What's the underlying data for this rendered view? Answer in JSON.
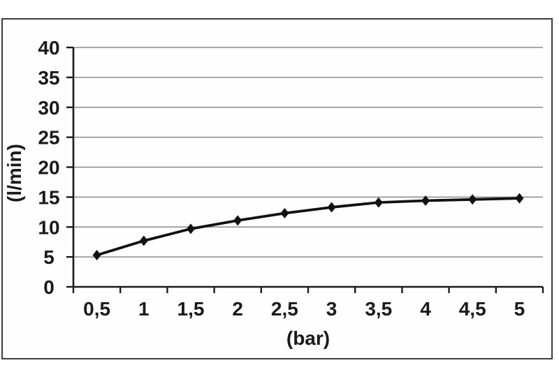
{
  "figure": {
    "frame_color": "#3c3c3c",
    "background_color": "#ffffff"
  },
  "chart_data": {
    "type": "line",
    "title": "",
    "xlabel": "(bar)",
    "ylabel": "(l/min)",
    "categories": [
      "0,5",
      "1",
      "1,5",
      "2",
      "2,5",
      "3",
      "3,5",
      "4",
      "4,5",
      "5"
    ],
    "values": [
      5.3,
      7.7,
      9.7,
      11.1,
      12.3,
      13.3,
      14.1,
      14.4,
      14.6,
      14.8
    ],
    "ylim": [
      0,
      40
    ],
    "ytick_step": 5,
    "ytick_labels": [
      "0",
      "5",
      "10",
      "15",
      "20",
      "25",
      "30",
      "35",
      "40"
    ],
    "grid": true,
    "legend": "none",
    "marker": "diamond",
    "colors": {
      "series": "#111111",
      "marker": "#111111",
      "gridline": "#8a8a8a",
      "axis": "#1a1a1a",
      "text": "#1a1a1a"
    }
  }
}
